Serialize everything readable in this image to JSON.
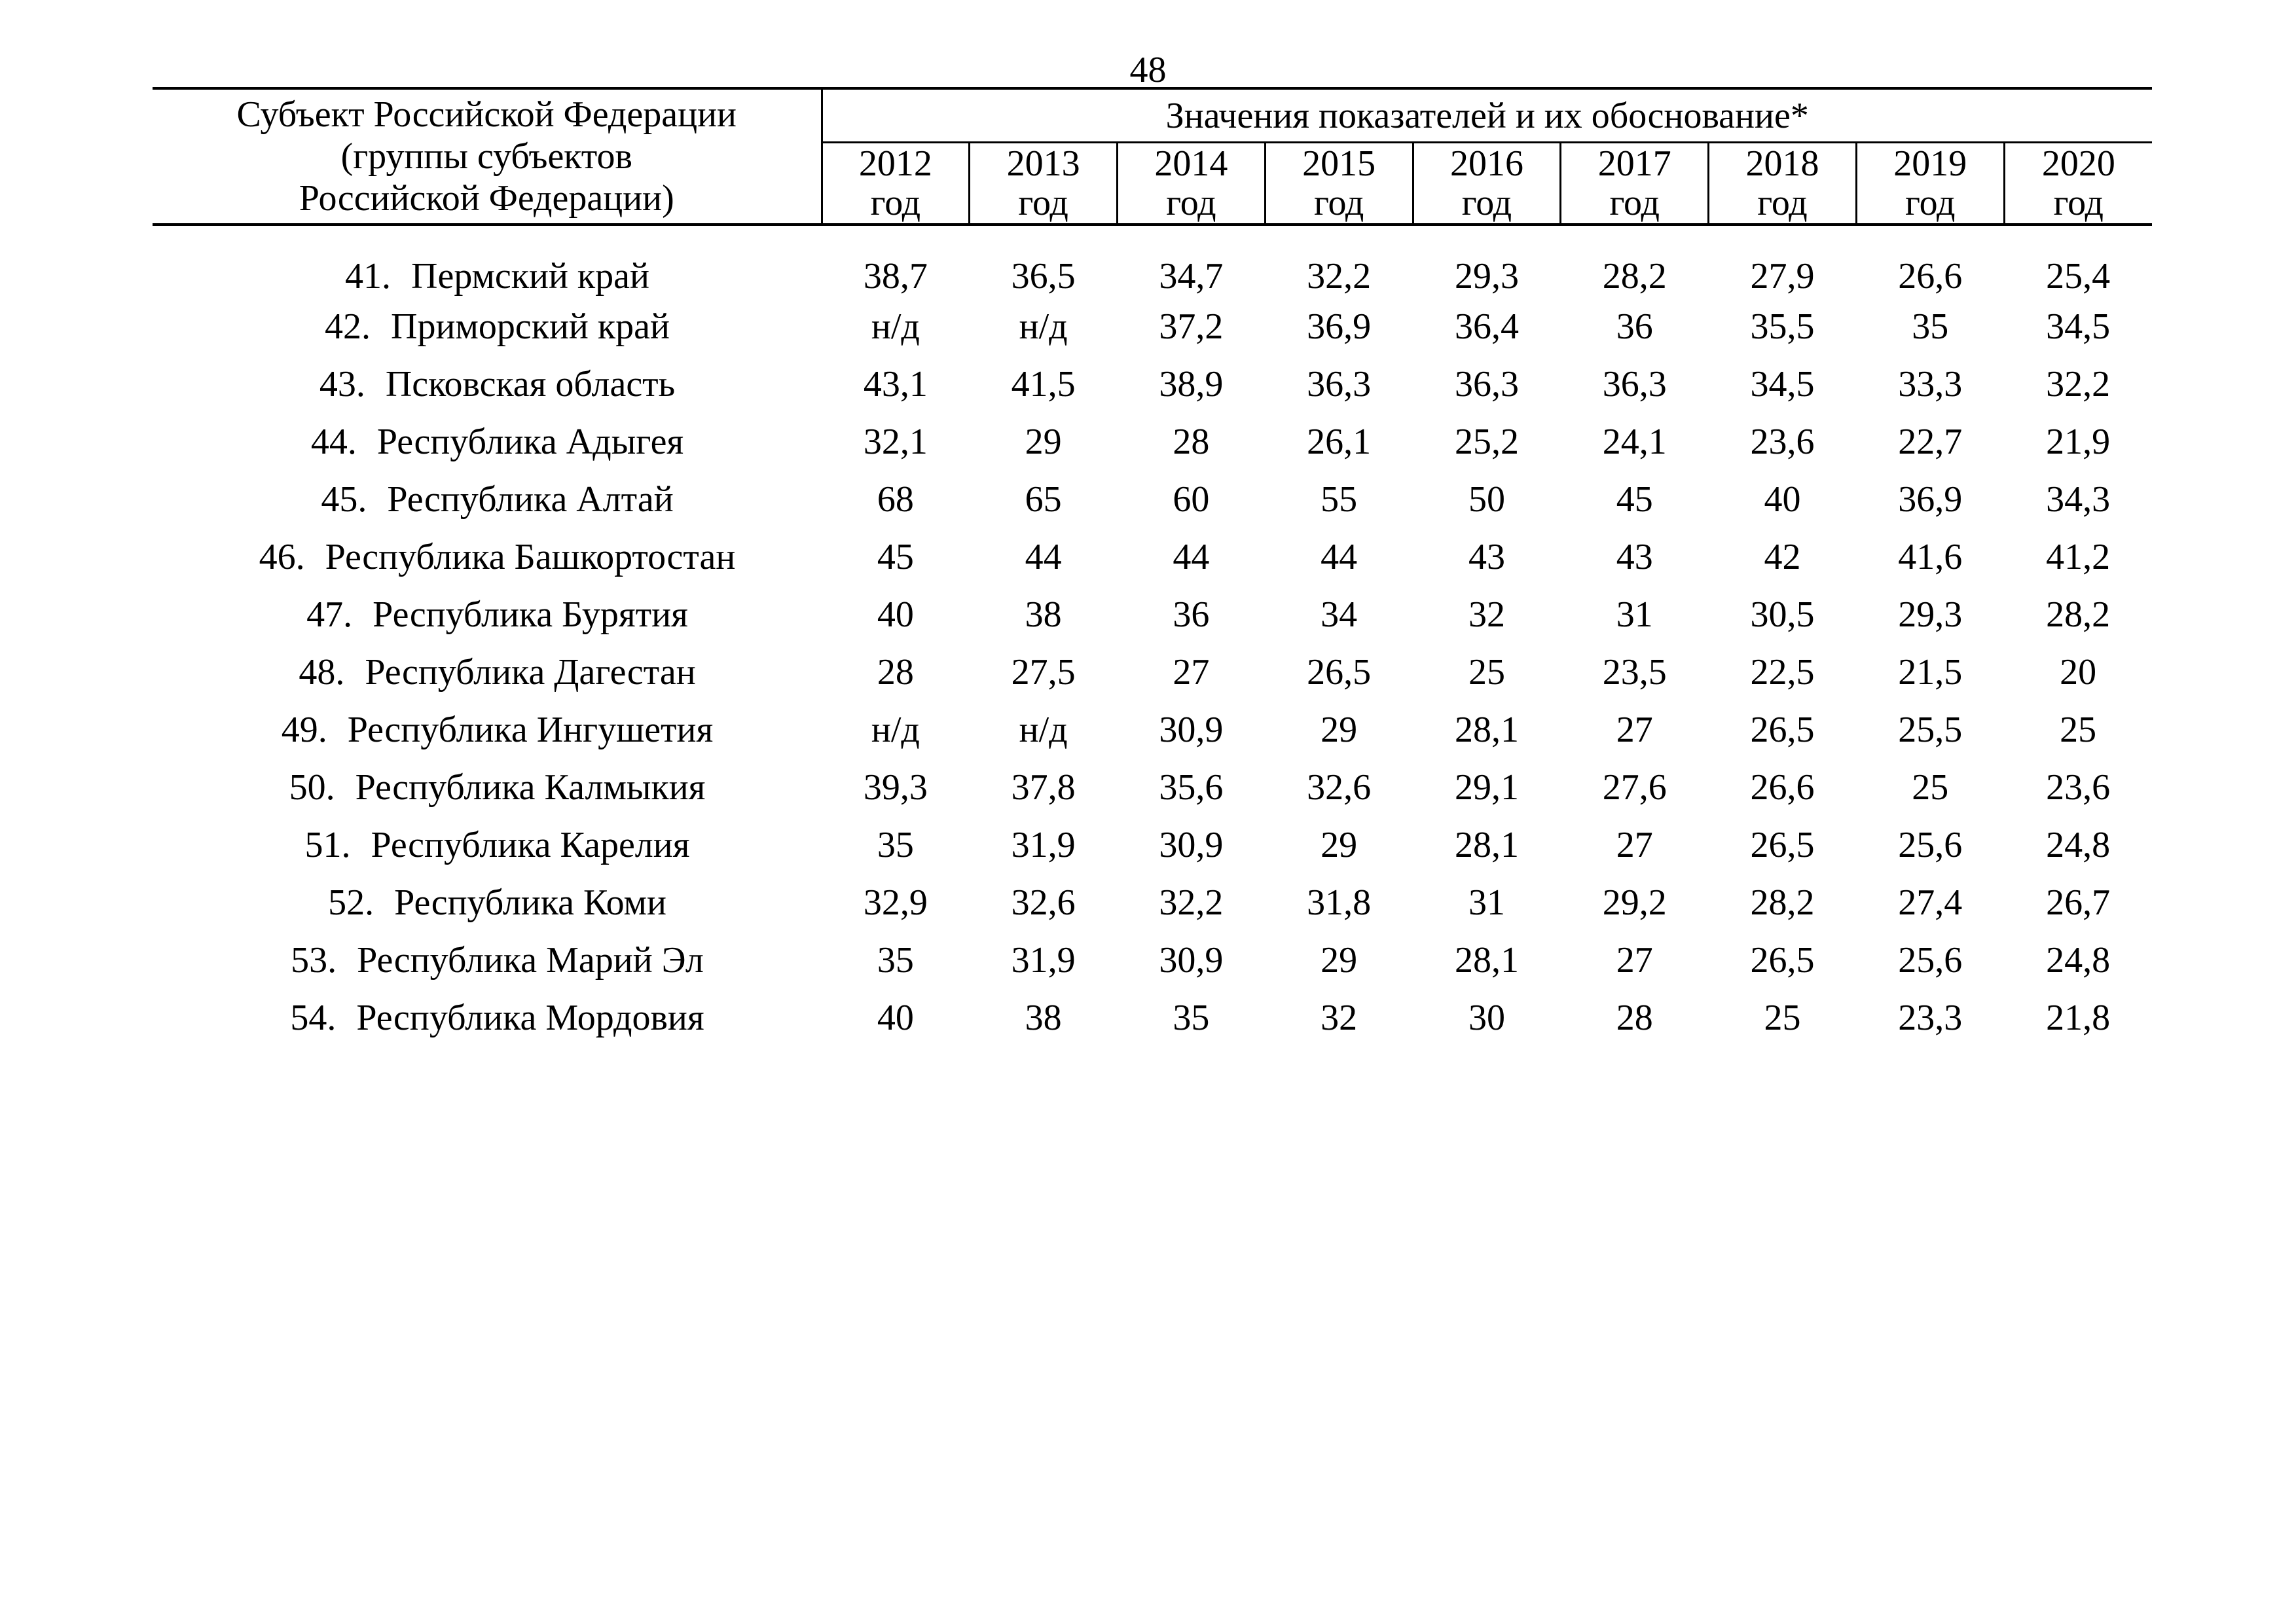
{
  "page": {
    "number": "48"
  },
  "table": {
    "header": {
      "subject_label": "Субъект Российской Федерации\n(группы субъектов\nРоссийской Федерации)",
      "values_label": "Значения показателей и их обоснование*",
      "year_word": "год",
      "years": [
        "2012",
        "2013",
        "2014",
        "2015",
        "2016",
        "2017",
        "2018",
        "2019",
        "2020"
      ]
    },
    "rows": [
      {
        "num": "41.",
        "name": "Пермский край",
        "values": [
          "38,7",
          "36,5",
          "34,7",
          "32,2",
          "29,3",
          "28,2",
          "27,9",
          "26,6",
          "25,4"
        ]
      },
      {
        "num": "42.",
        "name": "Приморский край",
        "values": [
          "н/д",
          "н/д",
          "37,2",
          "36,9",
          "36,4",
          "36",
          "35,5",
          "35",
          "34,5"
        ]
      },
      {
        "num": "43.",
        "name": "Псковская область",
        "values": [
          "43,1",
          "41,5",
          "38,9",
          "36,3",
          "36,3",
          "36,3",
          "34,5",
          "33,3",
          "32,2"
        ]
      },
      {
        "num": "44.",
        "name": "Республика Адыгея",
        "values": [
          "32,1",
          "29",
          "28",
          "26,1",
          "25,2",
          "24,1",
          "23,6",
          "22,7",
          "21,9"
        ]
      },
      {
        "num": "45.",
        "name": "Республика Алтай",
        "values": [
          "68",
          "65",
          "60",
          "55",
          "50",
          "45",
          "40",
          "36,9",
          "34,3"
        ]
      },
      {
        "num": "46.",
        "name": "Республика Башкортостан",
        "values": [
          "45",
          "44",
          "44",
          "44",
          "43",
          "43",
          "42",
          "41,6",
          "41,2"
        ]
      },
      {
        "num": "47.",
        "name": "Республика Бурятия",
        "values": [
          "40",
          "38",
          "36",
          "34",
          "32",
          "31",
          "30,5",
          "29,3",
          "28,2"
        ]
      },
      {
        "num": "48.",
        "name": "Республика Дагестан",
        "values": [
          "28",
          "27,5",
          "27",
          "26,5",
          "25",
          "23,5",
          "22,5",
          "21,5",
          "20"
        ]
      },
      {
        "num": "49.",
        "name": "Республика Ингушетия",
        "values": [
          "н/д",
          "н/д",
          "30,9",
          "29",
          "28,1",
          "27",
          "26,5",
          "25,5",
          "25"
        ]
      },
      {
        "num": "50.",
        "name": "Республика Калмыкия",
        "values": [
          "39,3",
          "37,8",
          "35,6",
          "32,6",
          "29,1",
          "27,6",
          "26,6",
          "25",
          "23,6"
        ]
      },
      {
        "num": "51.",
        "name": "Республика Карелия",
        "values": [
          "35",
          "31,9",
          "30,9",
          "29",
          "28,1",
          "27",
          "26,5",
          "25,6",
          "24,8"
        ]
      },
      {
        "num": "52.",
        "name": "Республика Коми",
        "values": [
          "32,9",
          "32,6",
          "32,2",
          "31,8",
          "31",
          "29,2",
          "28,2",
          "27,4",
          "26,7"
        ]
      },
      {
        "num": "53.",
        "name": "Республика Марий Эл",
        "values": [
          "35",
          "31,9",
          "30,9",
          "29",
          "28,1",
          "27",
          "26,5",
          "25,6",
          "24,8"
        ]
      },
      {
        "num": "54.",
        "name": "Республика Мордовия",
        "values": [
          "40",
          "38",
          "35",
          "32",
          "30",
          "28",
          "25",
          "23,3",
          "21,8"
        ]
      }
    ]
  }
}
